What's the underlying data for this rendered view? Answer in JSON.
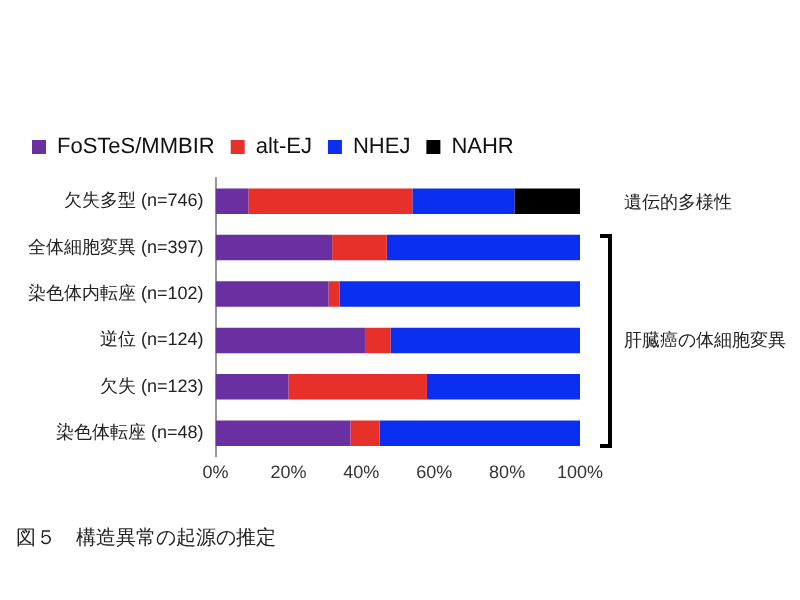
{
  "chart_data": {
    "type": "bar",
    "orientation": "horizontal",
    "stacked": true,
    "categories": [
      "欠失多型 (n=746)",
      "全体細胞変異 (n=397)",
      "染色体内転座 (n=102)",
      "逆位 (n=124)",
      "欠失 (n=123)",
      "染色体転座 (n=48)"
    ],
    "series": [
      {
        "name": "FoSTeS/MMBIR",
        "color": "#6a2fa0",
        "values": [
          9,
          32,
          31,
          41,
          20,
          37
        ]
      },
      {
        "name": "alt-EJ",
        "color": "#e8302a",
        "values": [
          45,
          15,
          3,
          7,
          38,
          8
        ]
      },
      {
        "name": "NHEJ",
        "color": "#0a2ff0",
        "values": [
          28,
          53,
          66,
          52,
          42,
          55
        ]
      },
      {
        "name": "NAHR",
        "color": "#000000",
        "values": [
          18,
          0,
          0,
          0,
          0,
          0
        ]
      }
    ],
    "xlim": [
      0,
      100
    ],
    "xticks": [
      {
        "value": 0,
        "label": "0%"
      },
      {
        "value": 20,
        "label": "20%"
      },
      {
        "value": 40,
        "label": "40%"
      },
      {
        "value": 60,
        "label": "60%"
      },
      {
        "value": 80,
        "label": "80%"
      },
      {
        "value": 100,
        "label": "100%"
      }
    ],
    "legend": "top left",
    "annotations": [
      "遺伝的多様性",
      "肝臓癌の体細胞変異",
      "図５　構造異常の起源の推定"
    ]
  }
}
